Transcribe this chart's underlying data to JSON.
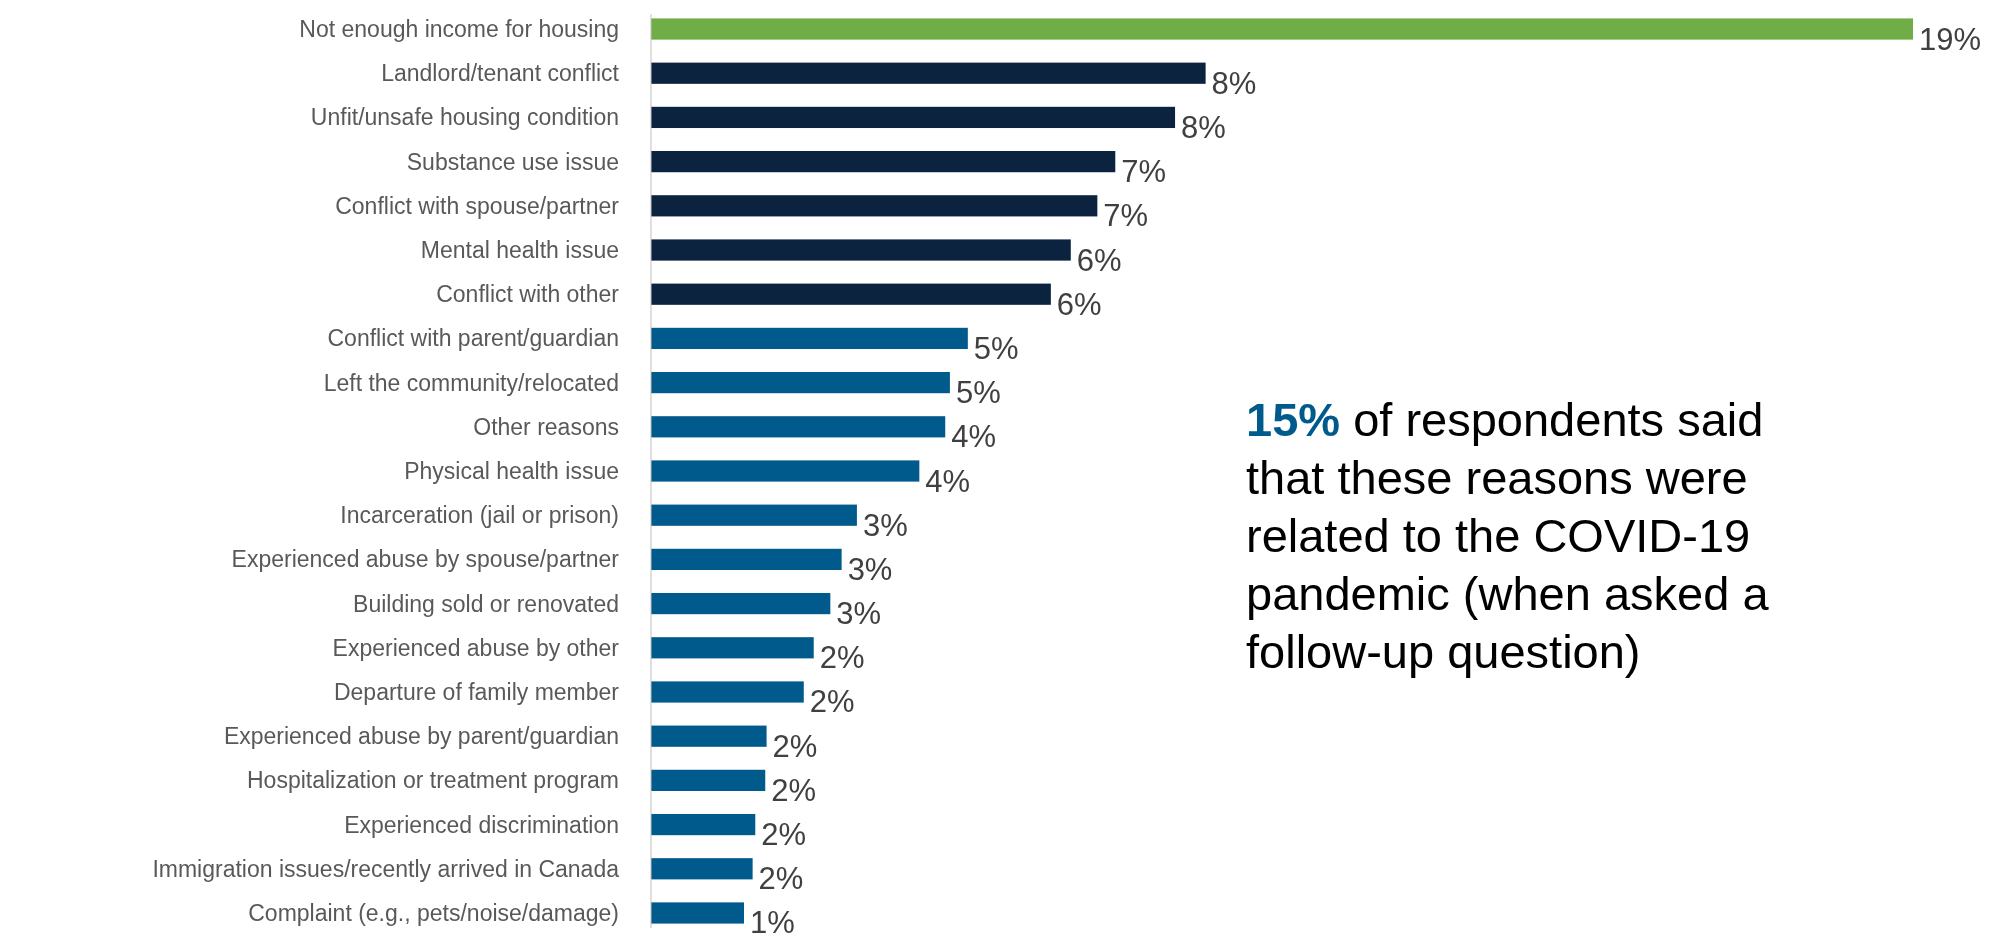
{
  "chart_data": {
    "type": "bar",
    "orientation": "horizontal",
    "categories": [
      "Not enough income for housing",
      "Landlord/tenant conflict",
      "Unfit/unsafe housing condition",
      "Substance use issue",
      "Conflict with spouse/partner",
      "Mental health issue",
      "Conflict with other",
      "Conflict with parent/guardian",
      "Left the community/relocated",
      "Other reasons",
      "Physical health issue",
      "Incarceration (jail or prison)",
      "Experienced abuse by spouse/partner",
      "Building sold or renovated",
      "Experienced abuse by other",
      "Departure of family member",
      "Experienced abuse by parent/guardian",
      "Hospitalization or treatment program",
      "Experienced discrimination",
      "Immigration issues/recently arrived in Canada",
      "Complaint (e.g., pets/noise/damage)"
    ],
    "values": [
      19,
      8.35,
      7.89,
      6.99,
      6.72,
      6.32,
      6.02,
      4.77,
      4.5,
      4.43,
      4.04,
      3.1,
      2.87,
      2.7,
      2.45,
      2.3,
      1.74,
      1.72,
      1.57,
      1.53,
      1.4
    ],
    "value_labels": [
      "19%",
      "8%",
      "8%",
      "7%",
      "7%",
      "6%",
      "6%",
      "5%",
      "5%",
      "4%",
      "4%",
      "3%",
      "3%",
      "3%",
      "2%",
      "2%",
      "2%",
      "2%",
      "2%",
      "2%",
      "1%"
    ],
    "colors": [
      "#70ad47",
      "#0c2340",
      "#0c2340",
      "#0c2340",
      "#0c2340",
      "#0c2340",
      "#0c2340",
      "#005a8c",
      "#005a8c",
      "#005a8c",
      "#005a8c",
      "#005a8c",
      "#005a8c",
      "#005a8c",
      "#005a8c",
      "#005a8c",
      "#005a8c",
      "#005a8c",
      "#005a8c",
      "#005a8c",
      "#005a8c"
    ],
    "annotations": [
      "15%",
      "of respondents said that these reasons were related to the COVID-19 pandemic (when asked a follow-up question)"
    ],
    "data_labels": false
  }
}
